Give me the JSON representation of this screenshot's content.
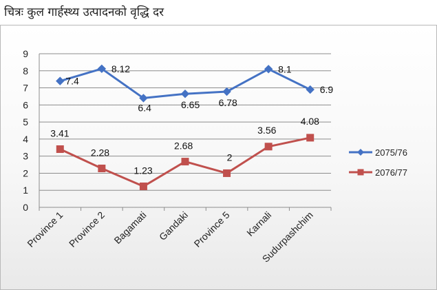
{
  "title": "चित्रः कुल गार्हस्थ्य उत्पादनको वृद्धि दर",
  "chart_data": {
    "type": "line",
    "title": "चित्रः कुल गार्हस्थ्य उत्पादनको वृद्धि दर",
    "categories": [
      "Province 1",
      "Province 2",
      "Bagamati",
      "Gandaki",
      "Province 5",
      "Karnali",
      "Sudurpashchim"
    ],
    "series": [
      {
        "name": "2075/76",
        "values": [
          7.4,
          8.12,
          6.4,
          6.65,
          6.78,
          8.1,
          6.9
        ],
        "labels": [
          "7.4",
          "8.12",
          "6.4",
          "6.65",
          "6.78",
          "8.1",
          "6.9"
        ],
        "color": "#4472c4",
        "marker": "diamond"
      },
      {
        "name": "2076/77",
        "values": [
          3.41,
          2.28,
          1.23,
          2.68,
          2,
          3.56,
          4.08
        ],
        "labels": [
          "3.41",
          "2.28",
          "1.23",
          "2.68",
          "2",
          "3.56",
          "4.08"
        ],
        "color": "#c0504d",
        "marker": "square"
      }
    ],
    "ylim": [
      0,
      9
    ],
    "yticks": [
      "0",
      "1",
      "2",
      "3",
      "4",
      "5",
      "6",
      "7",
      "8",
      "9"
    ],
    "xlabel": "",
    "ylabel": "",
    "grid": true,
    "legend": "right"
  }
}
